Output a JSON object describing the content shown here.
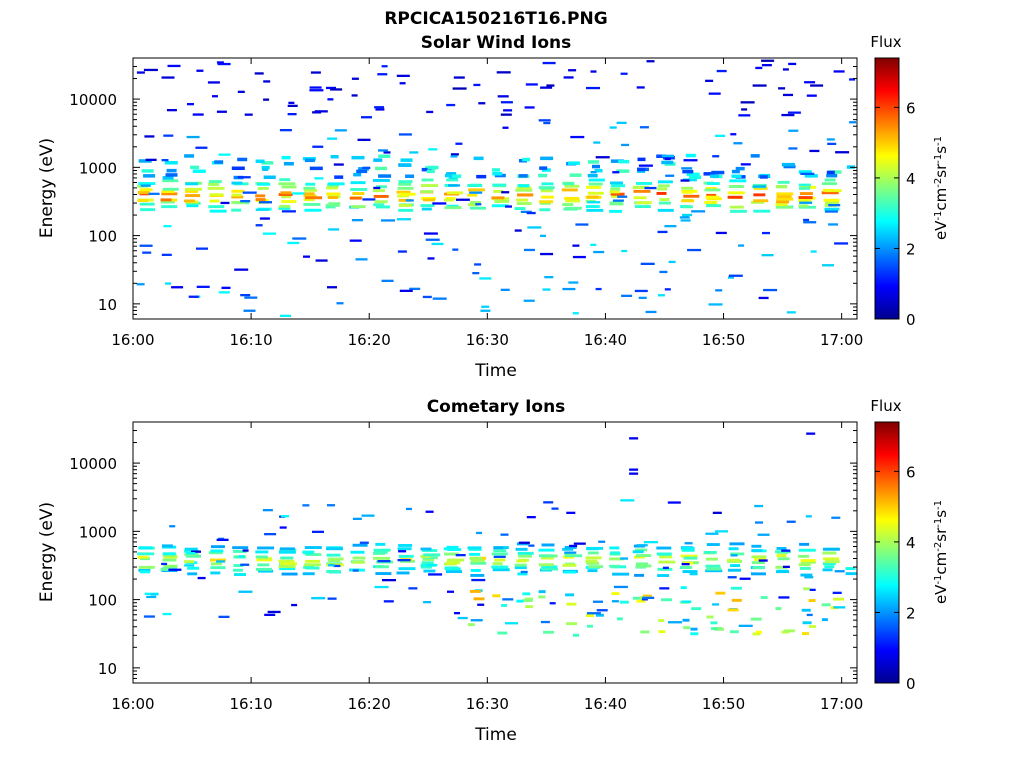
{
  "figure_title": "RPCICA150216T16.PNG",
  "chart_data": [
    {
      "type": "heatmap",
      "title": "Solar Wind Ions",
      "xlabel": "Time",
      "ylabel": "Energy (eV)",
      "x_ticks": [
        "16:00",
        "16:10",
        "16:20",
        "16:30",
        "16:40",
        "16:50",
        "17:00"
      ],
      "x_range_minutes": [
        0,
        61.3
      ],
      "y_scale": "log",
      "y_ticks": [
        "10",
        "100",
        "1000",
        "10000"
      ],
      "y_range": [
        6,
        40000
      ],
      "colorbar": {
        "title": "Flux",
        "label": "eV-1cm-2sr-1s-1",
        "ticks": [
          "0",
          "2",
          "4",
          "6"
        ],
        "range": [
          0,
          7.4
        ],
        "colormap": "jet"
      },
      "features": {
        "core_band_ev": [
          250,
          600
        ],
        "core_peak_flux": 5.6,
        "secondary_band_ev": [
          700,
          1500
        ],
        "scan_cycle_minutes": 2.0,
        "sparse_background": "counts scattered across all energies at flux 0.3-2.5"
      }
    },
    {
      "type": "heatmap",
      "title": "Cometary Ions",
      "xlabel": "Time",
      "ylabel": "Energy (eV)",
      "x_ticks": [
        "16:00",
        "16:10",
        "16:20",
        "16:30",
        "16:40",
        "16:50",
        "17:00"
      ],
      "x_range_minutes": [
        0,
        61.3
      ],
      "y_scale": "log",
      "y_ticks": [
        "10",
        "100",
        "1000",
        "10000"
      ],
      "y_range": [
        6,
        40000
      ],
      "colorbar": {
        "title": "Flux",
        "label": "eV-1cm-2sr-1s-1",
        "ticks": [
          "0",
          "2",
          "4",
          "6"
        ],
        "range": [
          0,
          7.4
        ],
        "colormap": "jet"
      },
      "features": {
        "core_band_ev": [
          250,
          600
        ],
        "core_peak_flux": 4.5,
        "low_energy_band_ev": [
          30,
          150
        ],
        "low_energy_peak_flux": 5.2,
        "scan_cycle_minutes": 2.0,
        "high_energy_spots": [
          {
            "t_min": 42.0,
            "ev": 23000
          },
          {
            "t_min": 42.0,
            "ev": 8000
          },
          {
            "t_min": 42.0,
            "ev": 7000
          },
          {
            "t_min": 57.0,
            "ev": 27000
          }
        ]
      }
    }
  ]
}
